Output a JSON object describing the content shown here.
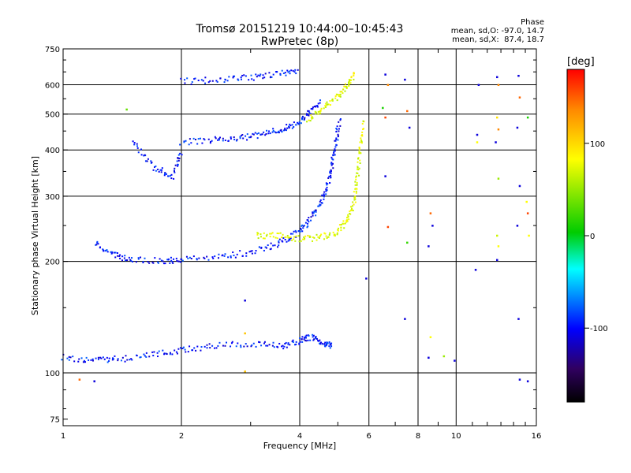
{
  "chart_data": {
    "type": "scatter",
    "title": "Tromsø 20151219 10:44:00–10:45:43",
    "subtitle": "RwPretec (8p)",
    "xlabel": "Frequency [MHz]",
    "ylabel": "Stationary phase Virtual Height [km]",
    "x_scale": "log",
    "y_scale": "log",
    "xlim": [
      1,
      16
    ],
    "ylim": [
      72,
      750
    ],
    "x_ticks": [
      1,
      2,
      4,
      6,
      8,
      10,
      16
    ],
    "y_ticks": [
      75,
      100,
      200,
      300,
      400,
      500,
      600,
      750
    ],
    "grid": true,
    "phase_stats": {
      "title": "Phase",
      "line1": "mean, sd,O: -97.0, 14.7",
      "line2": "mean, sd,X:  87.4, 18.7"
    },
    "colorbar": {
      "label": "[deg]",
      "range": [
        -180,
        180
      ],
      "ticks": [
        100,
        0,
        -100
      ],
      "colors": [
        "#ff0000",
        "#ff8800",
        "#ffff00",
        "#00cc00",
        "#00ffff",
        "#0000ff",
        "#000000"
      ]
    },
    "series": [
      {
        "name": "O",
        "mean_phase": -97.0,
        "segments": [
          {
            "f": [
              1.0,
              1.2,
              1.4,
              1.7,
              2.0,
              2.4,
              3.0,
              3.6,
              4.0,
              4.3,
              4.6,
              4.8
            ],
            "h": [
              110,
              108,
              109,
              112,
              115,
              118,
              120,
              118,
              122,
              125,
              120,
              118
            ]
          },
          {
            "f": [
              1.2,
              1.35,
              1.5,
              1.8,
              2.0,
              2.5,
              3.0,
              3.5,
              3.9,
              4.2,
              4.5,
              4.7,
              4.85,
              4.95,
              5.05
            ],
            "h": [
              225,
              208,
              202,
              200,
              202,
              205,
              212,
              222,
              238,
              255,
              285,
              320,
              370,
              420,
              480
            ]
          },
          {
            "f": [
              1.5,
              1.7,
              1.9,
              2.0
            ],
            "h": [
              420,
              360,
              340,
              400
            ]
          },
          {
            "f": [
              2.0,
              2.4,
              2.8,
              3.2,
              3.6,
              3.9,
              4.2,
              4.5
            ],
            "h": [
              420,
              425,
              430,
              440,
              455,
              470,
              500,
              540
            ]
          },
          {
            "f": [
              2.0,
              2.5,
              3.0,
              3.5,
              4.0
            ],
            "h": [
              612,
              618,
              627,
              640,
              655
            ]
          }
        ]
      },
      {
        "name": "X",
        "mean_phase": 87.4,
        "segments": [
          {
            "f": [
              3.1,
              3.5,
              4.0,
              4.5,
              5.0,
              5.3,
              5.5,
              5.6,
              5.7,
              5.8
            ],
            "h": [
              235,
              235,
              230,
              232,
              240,
              260,
              290,
              340,
              400,
              480
            ]
          },
          {
            "f": [
              4.2,
              4.6,
              5.0,
              5.3,
              5.5
            ],
            "h": [
              480,
              520,
              560,
              600,
              640
            ]
          }
        ]
      }
    ],
    "scatter_points": [
      {
        "f": 1.45,
        "h": 515,
        "phase": 40
      },
      {
        "f": 1.1,
        "h": 96,
        "phase": 150
      },
      {
        "f": 1.2,
        "h": 95,
        "phase": -110
      },
      {
        "f": 2.9,
        "h": 101,
        "phase": 120
      },
      {
        "f": 2.9,
        "h": 128,
        "phase": 120
      },
      {
        "f": 2.9,
        "h": 157,
        "phase": -110
      },
      {
        "f": 5.9,
        "h": 180,
        "phase": -110
      },
      {
        "f": 6.6,
        "h": 640,
        "phase": -110
      },
      {
        "f": 6.7,
        "h": 600,
        "phase": 140
      },
      {
        "f": 6.5,
        "h": 520,
        "phase": 10
      },
      {
        "f": 6.6,
        "h": 490,
        "phase": 160
      },
      {
        "f": 6.6,
        "h": 340,
        "phase": -110
      },
      {
        "f": 6.7,
        "h": 248,
        "phase": 160
      },
      {
        "f": 7.4,
        "h": 620,
        "phase": -110
      },
      {
        "f": 7.5,
        "h": 510,
        "phase": 150
      },
      {
        "f": 7.6,
        "h": 460,
        "phase": -110
      },
      {
        "f": 7.5,
        "h": 225,
        "phase": 20
      },
      {
        "f": 7.4,
        "h": 140,
        "phase": -110
      },
      {
        "f": 8.6,
        "h": 270,
        "phase": 150
      },
      {
        "f": 8.7,
        "h": 250,
        "phase": -110
      },
      {
        "f": 8.5,
        "h": 220,
        "phase": -110
      },
      {
        "f": 8.6,
        "h": 125,
        "phase": 100
      },
      {
        "f": 8.5,
        "h": 110,
        "phase": -110
      },
      {
        "f": 9.3,
        "h": 111,
        "phase": 60
      },
      {
        "f": 9.9,
        "h": 108,
        "phase": -110
      },
      {
        "f": 11.4,
        "h": 600,
        "phase": -110
      },
      {
        "f": 11.3,
        "h": 440,
        "phase": -110
      },
      {
        "f": 11.3,
        "h": 420,
        "phase": 100
      },
      {
        "f": 11.2,
        "h": 190,
        "phase": -110
      },
      {
        "f": 12.7,
        "h": 630,
        "phase": -110
      },
      {
        "f": 12.8,
        "h": 600,
        "phase": 140
      },
      {
        "f": 12.7,
        "h": 490,
        "phase": 110
      },
      {
        "f": 12.8,
        "h": 455,
        "phase": 140
      },
      {
        "f": 12.6,
        "h": 420,
        "phase": -110
      },
      {
        "f": 12.8,
        "h": 335,
        "phase": 60
      },
      {
        "f": 12.7,
        "h": 235,
        "phase": 80
      },
      {
        "f": 12.8,
        "h": 220,
        "phase": 100
      },
      {
        "f": 12.7,
        "h": 202,
        "phase": -110
      },
      {
        "f": 14.4,
        "h": 635,
        "phase": -110
      },
      {
        "f": 14.5,
        "h": 555,
        "phase": 150
      },
      {
        "f": 14.3,
        "h": 460,
        "phase": -110
      },
      {
        "f": 14.5,
        "h": 320,
        "phase": -110
      },
      {
        "f": 14.3,
        "h": 250,
        "phase": -110
      },
      {
        "f": 14.4,
        "h": 140,
        "phase": -110
      },
      {
        "f": 14.5,
        "h": 96,
        "phase": -110
      },
      {
        "f": 15.2,
        "h": 490,
        "phase": 10
      },
      {
        "f": 15.1,
        "h": 290,
        "phase": 100
      },
      {
        "f": 15.2,
        "h": 270,
        "phase": 160
      },
      {
        "f": 15.3,
        "h": 235,
        "phase": 100
      },
      {
        "f": 15.2,
        "h": 95,
        "phase": -110
      }
    ]
  }
}
